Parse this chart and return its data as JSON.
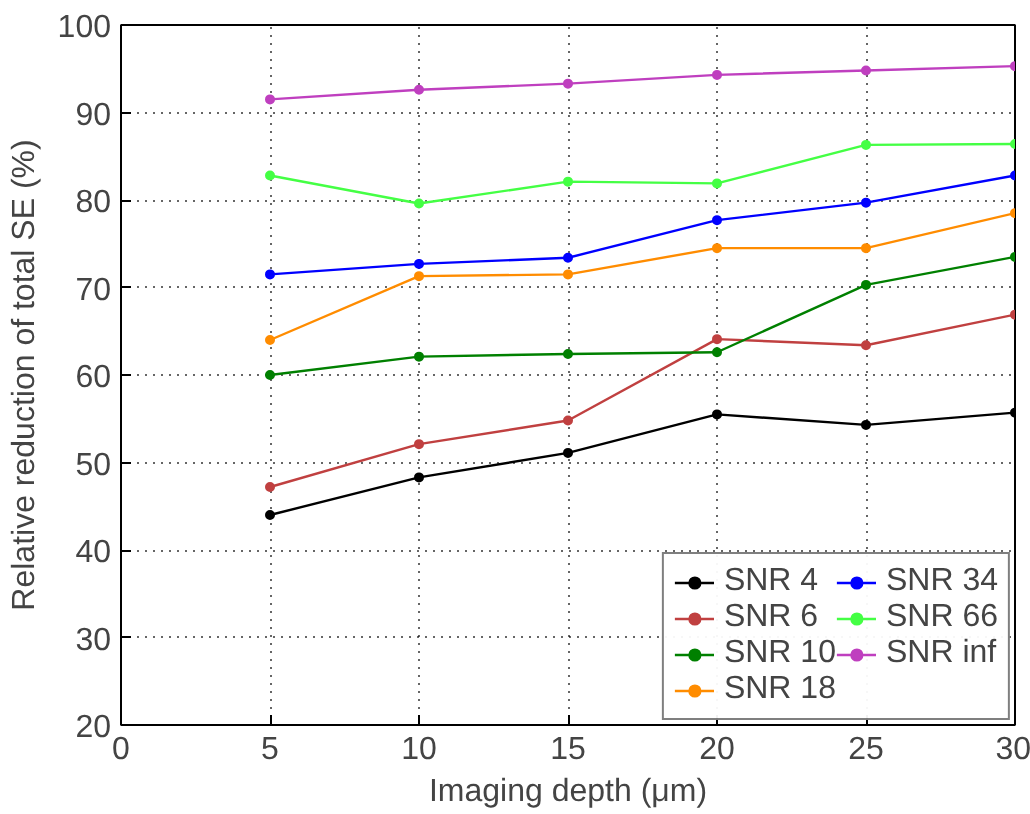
{
  "chart_data": {
    "type": "line",
    "xlabel": "Imaging depth (μm)",
    "ylabel": "Relative reduction of total SE (%)",
    "x": [
      5,
      10,
      15,
      20,
      25,
      30
    ],
    "series": [
      {
        "name": "SNR 4",
        "color": "#000000",
        "values": [
          44.0,
          48.3,
          51.1,
          55.5,
          54.3,
          55.7
        ]
      },
      {
        "name": "SNR 6",
        "color": "#c04040",
        "values": [
          47.2,
          52.1,
          54.8,
          64.1,
          63.4,
          66.9
        ]
      },
      {
        "name": "SNR 10",
        "color": "#008000",
        "values": [
          60.0,
          62.1,
          62.4,
          62.6,
          70.3,
          73.5
        ]
      },
      {
        "name": "SNR 18",
        "color": "#ff8c00",
        "values": [
          64.0,
          71.3,
          71.5,
          74.5,
          74.5,
          78.5
        ]
      },
      {
        "name": "SNR 34",
        "color": "#0000ff",
        "values": [
          71.5,
          72.7,
          73.4,
          77.7,
          79.7,
          82.8
        ]
      },
      {
        "name": "SNR 66",
        "color": "#44ff44",
        "values": [
          82.8,
          79.6,
          82.1,
          81.9,
          86.3,
          86.4
        ]
      },
      {
        "name": "SNR inf",
        "color": "#bf3fbf",
        "values": [
          91.5,
          92.6,
          93.3,
          94.3,
          94.8,
          95.3
        ]
      }
    ],
    "xlim": [
      0,
      30
    ],
    "ylim": [
      20,
      100
    ],
    "xticks": [
      0,
      5,
      10,
      15,
      20,
      25,
      30
    ],
    "yticks": [
      20,
      30,
      40,
      50,
      60,
      70,
      80,
      90,
      100
    ],
    "grid": true,
    "legend": "bottom right",
    "marker": "circle",
    "line_style": "solid"
  }
}
